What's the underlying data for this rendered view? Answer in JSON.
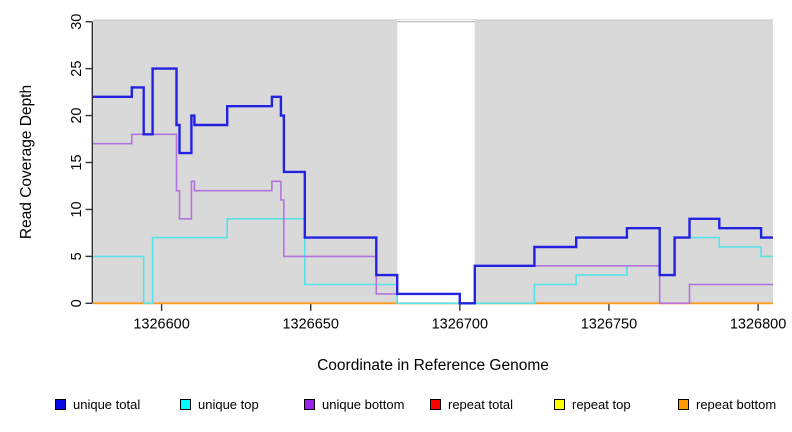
{
  "figure": {
    "xlabel": "Coordinate in Reference Genome",
    "ylabel": "Read Coverage Depth"
  },
  "chart_data": {
    "type": "line",
    "subtype": "step",
    "title": "",
    "xlabel": "Coordinate in Reference Genome",
    "ylabel": "Read Coverage Depth",
    "xlim": [
      1326577,
      1326805
    ],
    "ylim": [
      0,
      30
    ],
    "xticks": [
      1326600,
      1326650,
      1326700,
      1326750,
      1326800
    ],
    "yticks": [
      0,
      5,
      10,
      15,
      20,
      25,
      30
    ],
    "grid": "off",
    "panel_bg": "#d9d9d9",
    "axis_color": "#333333",
    "no_data_region": {
      "from": 1326679,
      "to": 1326705,
      "color": "#ffffff"
    },
    "overlap_artifact": {
      "from": 1326679,
      "to": 1326725,
      "y": 0,
      "color": "#85cc85"
    },
    "series": [
      {
        "name": "repeat total",
        "line_color": "#e00000",
        "width": 1.4,
        "points": [
          [
            1326577,
            0
          ]
        ]
      },
      {
        "name": "repeat top",
        "line_color": "#ffff00",
        "width": 1.4,
        "points": [
          [
            1326577,
            0
          ]
        ]
      },
      {
        "name": "repeat bottom",
        "line_color": "#ff9b1c",
        "width": 1.8,
        "points": [
          [
            1326577,
            0
          ]
        ]
      },
      {
        "name": "unique top",
        "line_color": "#55e2ea",
        "width": 1.6,
        "points": [
          [
            1326577,
            5
          ],
          [
            1326594,
            0
          ],
          [
            1326597,
            7
          ],
          [
            1326622,
            9
          ],
          [
            1326648,
            2
          ],
          [
            1326679,
            0
          ],
          [
            1326725,
            2
          ],
          [
            1326739,
            3
          ],
          [
            1326756,
            4
          ],
          [
            1326767,
            3
          ],
          [
            1326772,
            7
          ],
          [
            1326787,
            6
          ],
          [
            1326801,
            5
          ]
        ]
      },
      {
        "name": "unique bottom",
        "line_color": "#b273de",
        "width": 1.6,
        "points": [
          [
            1326577,
            17
          ],
          [
            1326590,
            18
          ],
          [
            1326605,
            12
          ],
          [
            1326606,
            9
          ],
          [
            1326610,
            13
          ],
          [
            1326611,
            12
          ],
          [
            1326637,
            13
          ],
          [
            1326640,
            11
          ],
          [
            1326641,
            5
          ],
          [
            1326672,
            1
          ],
          [
            1326700,
            0
          ],
          [
            1326705,
            4
          ],
          [
            1326767,
            0
          ],
          [
            1326777,
            2
          ]
        ]
      },
      {
        "name": "unique total",
        "line_color": "#2222e0",
        "width": 2.4,
        "points": [
          [
            1326577,
            22
          ],
          [
            1326590,
            23
          ],
          [
            1326594,
            18
          ],
          [
            1326597,
            25
          ],
          [
            1326605,
            19
          ],
          [
            1326606,
            16
          ],
          [
            1326610,
            20
          ],
          [
            1326611,
            19
          ],
          [
            1326622,
            21
          ],
          [
            1326637,
            22
          ],
          [
            1326640,
            20
          ],
          [
            1326641,
            14
          ],
          [
            1326648,
            7
          ],
          [
            1326672,
            3
          ],
          [
            1326679,
            1
          ],
          [
            1326700,
            0
          ],
          [
            1326705,
            4
          ],
          [
            1326725,
            6
          ],
          [
            1326739,
            7
          ],
          [
            1326756,
            8
          ],
          [
            1326767,
            3
          ],
          [
            1326772,
            7
          ],
          [
            1326777,
            9
          ],
          [
            1326787,
            8
          ],
          [
            1326801,
            7
          ]
        ]
      }
    ],
    "legend_position": "bottom"
  },
  "legend": {
    "items": [
      {
        "label": "unique total",
        "color": "#0a0ae8"
      },
      {
        "label": "unique top",
        "color": "#00ffff"
      },
      {
        "label": "unique bottom",
        "color": "#9c22ee"
      },
      {
        "label": "repeat total",
        "color": "#ff0000"
      },
      {
        "label": "repeat top",
        "color": "#ffff00"
      },
      {
        "label": "repeat bottom",
        "color": "#ff9800"
      }
    ]
  }
}
